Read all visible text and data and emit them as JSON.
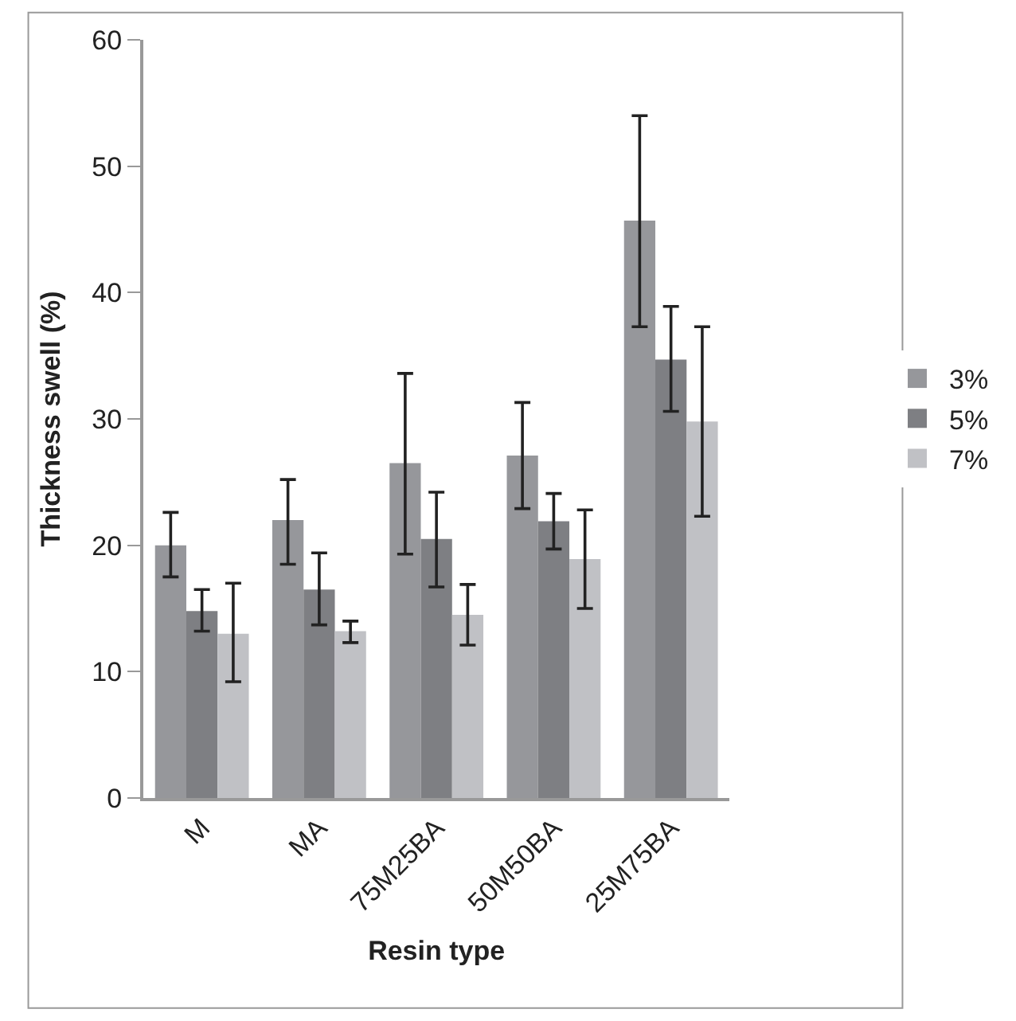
{
  "chart_data": {
    "type": "bar",
    "xlabel": "Resin type",
    "ylabel": "Thickness swell (%)",
    "categories": [
      "M",
      "MA",
      "75M25BA",
      "50M50BA",
      "25M75BA"
    ],
    "series": [
      {
        "name": "3%",
        "color": "#96979b",
        "values": [
          20,
          22,
          26.5,
          27.1,
          45.7
        ],
        "errors": [
          [
            17.5,
            22.6
          ],
          [
            18.5,
            25.2
          ],
          [
            19.3,
            33.6
          ],
          [
            22.9,
            31.3
          ],
          [
            37.3,
            54
          ]
        ]
      },
      {
        "name": "5%",
        "color": "#7e7f83",
        "values": [
          14.8,
          16.5,
          20.5,
          21.9,
          34.7
        ],
        "errors": [
          [
            13.2,
            16.5
          ],
          [
            13.7,
            19.4
          ],
          [
            16.7,
            24.2
          ],
          [
            19.7,
            24.1
          ],
          [
            30.6,
            38.9
          ]
        ]
      },
      {
        "name": "7%",
        "color": "#c0c1c5",
        "values": [
          13,
          13.2,
          14.5,
          18.9,
          29.8
        ],
        "errors": [
          [
            9.2,
            17
          ],
          [
            12.3,
            14
          ],
          [
            12.1,
            16.9
          ],
          [
            15,
            22.8
          ],
          [
            22.3,
            37.3
          ]
        ]
      }
    ],
    "ylim": [
      0,
      60
    ],
    "yticks": [
      0,
      10,
      20,
      30,
      40,
      50,
      60
    ],
    "legend": "right"
  }
}
